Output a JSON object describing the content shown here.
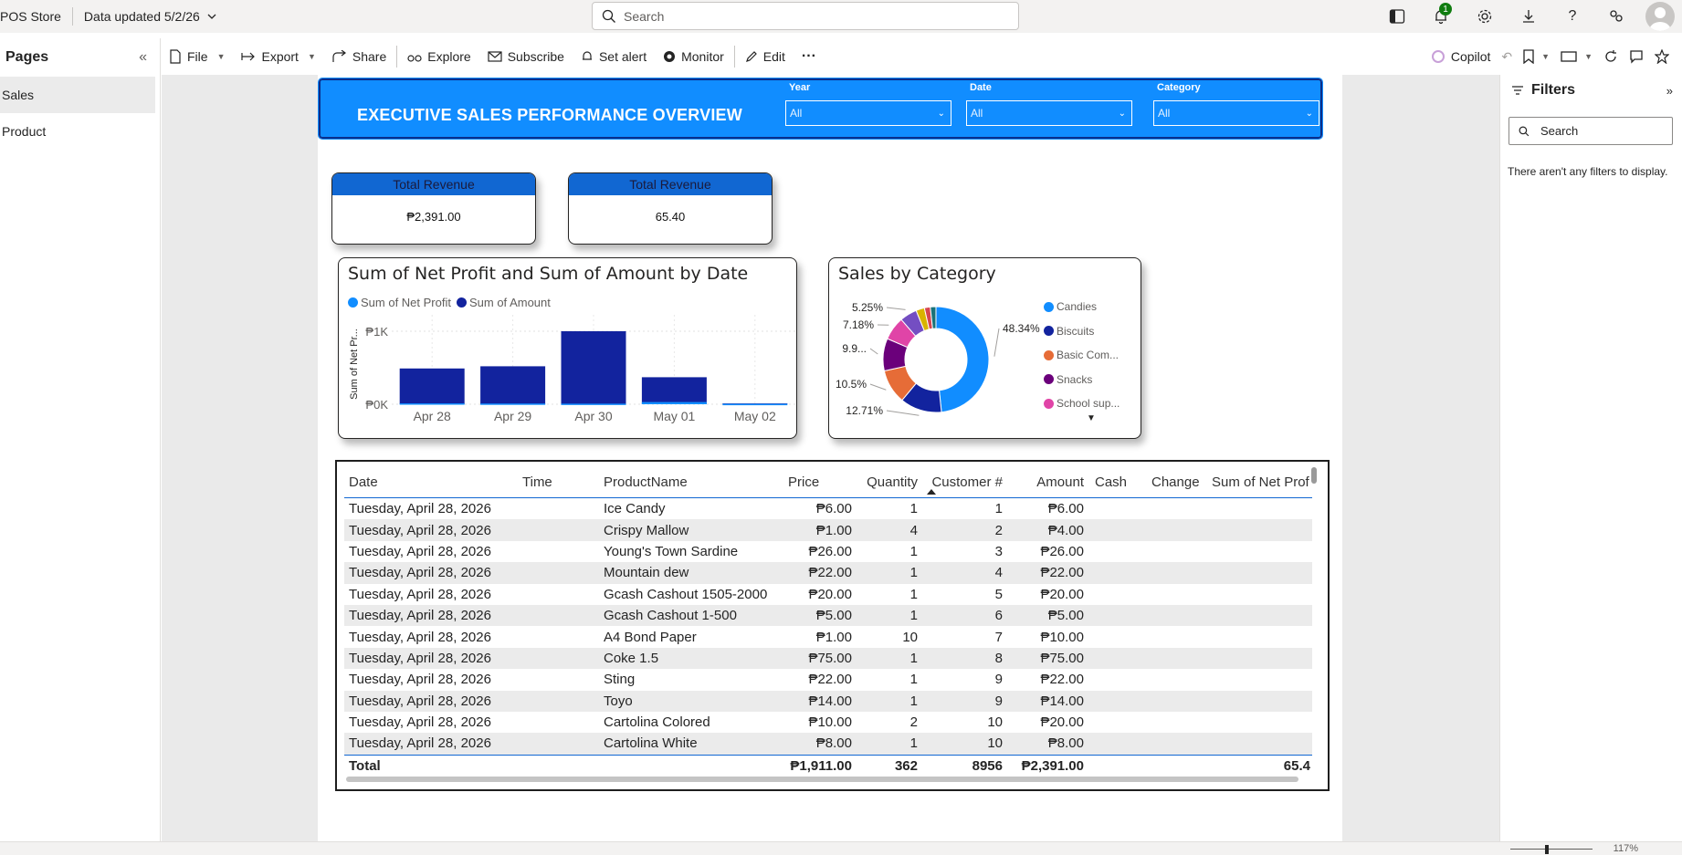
{
  "app": {
    "title": "POS Store",
    "data_updated": "Data updated 5/2/26",
    "search_placeholder": "Search",
    "notification_count": "1"
  },
  "toolbar": {
    "file": "File",
    "export": "Export",
    "share": "Share",
    "explore": "Explore",
    "subscribe": "Subscribe",
    "set_alert": "Set alert",
    "monitor": "Monitor",
    "edit": "Edit",
    "more": "···",
    "copilot": "Copilot"
  },
  "pages": {
    "header": "Pages",
    "items": [
      {
        "label": "Sales",
        "active": true
      },
      {
        "label": "Product",
        "active": false
      }
    ]
  },
  "banner": {
    "title": "EXECUTIVE SALES PERFORMANCE OVERVIEW",
    "slicers": [
      {
        "label": "Year",
        "value": "All"
      },
      {
        "label": "Date",
        "value": "All"
      },
      {
        "label": "Category",
        "value": "All"
      }
    ]
  },
  "kpis": [
    {
      "title": "Total Revenue",
      "value": "₱2,391.00"
    },
    {
      "title": "Total Revenue",
      "value": "65.40"
    }
  ],
  "chart_data": [
    {
      "type": "bar",
      "title": "Sum of Net Profit and Sum of Amount by Date",
      "ylabel": "Sum of Net Pr...",
      "xlabel": "",
      "categories": [
        "Apr 28",
        "Apr 29",
        "Apr 30",
        "May 01",
        "May 02"
      ],
      "y_ticks": [
        "₱0K",
        "₱1K"
      ],
      "ylim": [
        0,
        1100
      ],
      "series": [
        {
          "name": "Sum of Net Profit",
          "color": "#118dff",
          "values": [
            12,
            10,
            8,
            30,
            5
          ]
        },
        {
          "name": "Sum of Amount",
          "color": "#12239e",
          "values": [
            490,
            520,
            1000,
            370,
            11
          ]
        }
      ],
      "grid": true,
      "legend_position": "top-left"
    },
    {
      "type": "pie",
      "title": "Sales by Category",
      "donut": true,
      "labels": [
        "Candies",
        "Biscuits",
        "Basic Com...",
        "Snacks",
        "School sup..."
      ],
      "series": [
        {
          "name": "Candies",
          "color": "#118dff",
          "value": 48.34
        },
        {
          "name": "Biscuits",
          "color": "#12239e",
          "value": 12.71
        },
        {
          "name": "Basic Com...",
          "color": "#e66c37",
          "value": 10.5
        },
        {
          "name": "Snacks",
          "color": "#6b007b",
          "value": 9.9
        },
        {
          "name": "School sup...",
          "color": "#e044a7",
          "value": 7.18
        },
        {
          "name": "",
          "color": "#744ec2",
          "value": 5.25
        },
        {
          "name": "",
          "color": "#d9b300",
          "value": 2.6
        },
        {
          "name": "",
          "color": "#d64550",
          "value": 1.8
        },
        {
          "name": "",
          "color": "#197278",
          "value": 1.72
        }
      ],
      "data_labels": [
        "48.34%",
        "12.71%",
        "10.5%",
        "9.9...",
        "7.18%",
        "5.25%"
      ],
      "legend_position": "right"
    }
  ],
  "table": {
    "columns": [
      "Date",
      "Time",
      "ProductName",
      "Price",
      "Quantity",
      "Customer #",
      "Amount",
      "Cash",
      "Change",
      "Sum of Net Prof"
    ],
    "rows": [
      [
        "Tuesday, April 28, 2026",
        "",
        "Ice Candy",
        "₱6.00",
        "1",
        "1",
        "₱6.00",
        "",
        "",
        ""
      ],
      [
        "Tuesday, April 28, 2026",
        "",
        "Crispy Mallow",
        "₱1.00",
        "4",
        "2",
        "₱4.00",
        "",
        "",
        ""
      ],
      [
        "Tuesday, April 28, 2026",
        "",
        "Young's Town Sardine",
        "₱26.00",
        "1",
        "3",
        "₱26.00",
        "",
        "",
        ""
      ],
      [
        "Tuesday, April 28, 2026",
        "",
        "Mountain dew",
        "₱22.00",
        "1",
        "4",
        "₱22.00",
        "",
        "",
        ""
      ],
      [
        "Tuesday, April 28, 2026",
        "",
        "Gcash Cashout 1505-2000",
        "₱20.00",
        "1",
        "5",
        "₱20.00",
        "",
        "",
        ""
      ],
      [
        "Tuesday, April 28, 2026",
        "",
        "Gcash Cashout 1-500",
        "₱5.00",
        "1",
        "6",
        "₱5.00",
        "",
        "",
        ""
      ],
      [
        "Tuesday, April 28, 2026",
        "",
        "A4 Bond Paper",
        "₱1.00",
        "10",
        "7",
        "₱10.00",
        "",
        "",
        ""
      ],
      [
        "Tuesday, April 28, 2026",
        "",
        "Coke 1.5",
        "₱75.00",
        "1",
        "8",
        "₱75.00",
        "",
        "",
        ""
      ],
      [
        "Tuesday, April 28, 2026",
        "",
        "Sting",
        "₱22.00",
        "1",
        "9",
        "₱22.00",
        "",
        "",
        ""
      ],
      [
        "Tuesday, April 28, 2026",
        "",
        "Toyo",
        "₱14.00",
        "1",
        "9",
        "₱14.00",
        "",
        "",
        ""
      ],
      [
        "Tuesday, April 28, 2026",
        "",
        "Cartolina Colored",
        "₱10.00",
        "2",
        "10",
        "₱20.00",
        "",
        "",
        ""
      ],
      [
        "Tuesday, April 28, 2026",
        "",
        "Cartolina White",
        "₱8.00",
        "1",
        "10",
        "₱8.00",
        "",
        "",
        ""
      ]
    ],
    "total": [
      "Total",
      "",
      "",
      "₱1,911.00",
      "362",
      "8956",
      "₱2,391.00",
      "",
      "",
      "65.4"
    ]
  },
  "filters": {
    "header": "Filters",
    "search_placeholder": "Search",
    "empty_text": "There aren't any filters to display."
  },
  "status": {
    "zoom": "117%"
  }
}
